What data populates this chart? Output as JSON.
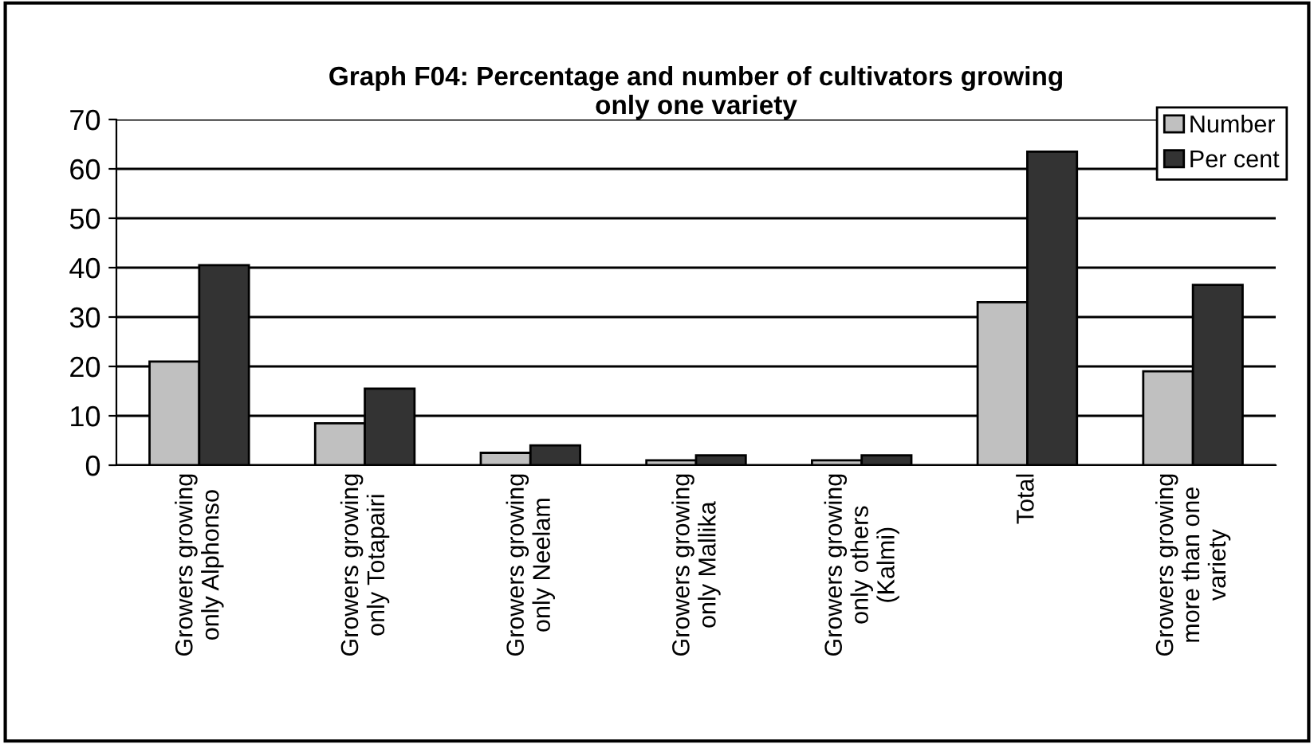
{
  "chart_data": {
    "type": "bar",
    "title": "Graph F04: Percentage and number of cultivators growing\nonly one variety",
    "categories": [
      "Growers growing\nonly Alphonso",
      "Growers growing\nonly Totapairi",
      "Growers growing\nonly Neelam",
      "Growers growing\nonly Mallika",
      "Growers growing\nonly others\n(Kalmi)",
      "Total",
      "Growers growing\nmore than one\nvariety"
    ],
    "series": [
      {
        "name": "Number",
        "color": "#c0c0c0",
        "values": [
          21,
          8.5,
          2.5,
          1,
          1,
          33,
          19
        ]
      },
      {
        "name": "Per cent",
        "color": "#333333",
        "values": [
          40.5,
          15.5,
          4,
          2,
          2,
          63.5,
          36.5
        ]
      }
    ],
    "ylim": [
      0,
      70
    ],
    "yticks": [
      0,
      10,
      20,
      30,
      40,
      50,
      60,
      70
    ],
    "grid": "y",
    "legend": "top right"
  }
}
